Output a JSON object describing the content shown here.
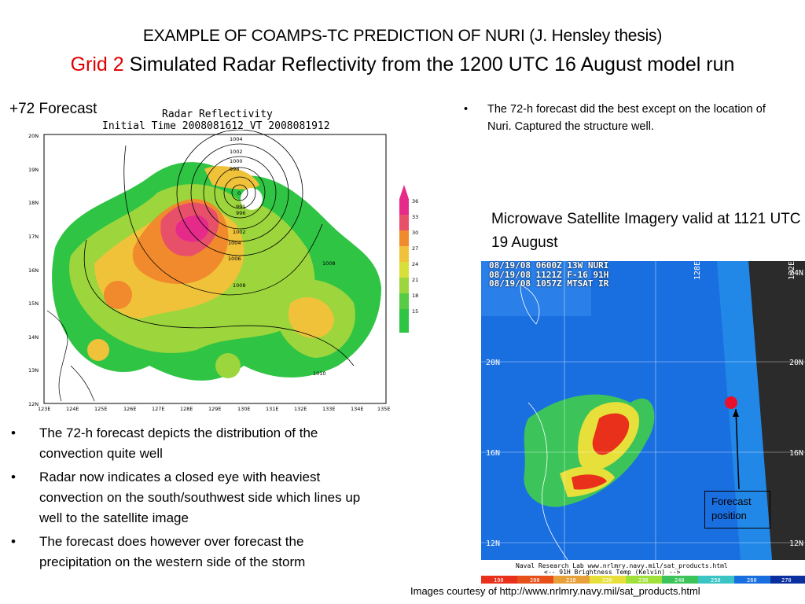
{
  "title": {
    "line1": "EXAMPLE OF COAMPS-TC PREDICTION OF NURI (J. Hensley thesis)",
    "line2_accent": "Grid 2",
    "line2_rest": " Simulated Radar Reflectivity from the 1200 UTC 16 August model run"
  },
  "left": {
    "forecast_label": "+72 Forecast",
    "radar_title": "Radar Reflectivity",
    "radar_subtitle": "Initial Time 2008081612 VT 2008081912",
    "lat_labels": [
      "20N",
      "19N",
      "18N",
      "17N",
      "16N",
      "15N",
      "14N",
      "13N",
      "12N"
    ],
    "lon_labels": [
      "123E",
      "124E",
      "125E",
      "126E",
      "127E",
      "128E",
      "129E",
      "130E",
      "131E",
      "132E",
      "133E",
      "134E",
      "135E"
    ],
    "colorbar_labels": [
      "36",
      "33",
      "30",
      "27",
      "24",
      "21",
      "18",
      "15"
    ],
    "contour_labels": [
      "1004",
      "1002",
      "1000",
      "998",
      "0",
      "991",
      "996",
      "1002",
      "1004",
      "1006",
      "1008",
      "1008",
      "1010"
    ],
    "bullets": [
      "The 72-h forecast depicts the distribution of the convection quite well",
      "Radar now indicates a closed eye with heaviest convection on the south/southwest side which lines up well to the satellite image",
      "The forecast does however over forecast the precipitation on the western side of the storm"
    ]
  },
  "right": {
    "bullet": "The 72-h forecast did the best except on the location of Nuri.  Captured the structure well.",
    "microwave_title": "Microwave Satellite Imagery valid at 1121 UTC 19 August",
    "sat_header_lines": [
      "08/19/08 0600Z 13W NURI",
      "08/19/08 1121Z F-16 91H",
      "08/19/08 1057Z MTSAT IR"
    ],
    "sat_lat_labels": [
      "20N",
      "16N",
      "12N",
      "24N",
      "20N",
      "16N",
      "12N"
    ],
    "sat_lon_labels": [
      "128E",
      "132E"
    ],
    "sat_footer": "Naval Research Lab  www.nrlmry.navy.mil/sat_products.html",
    "sat_footer2": "<--   91H Brightness Temp (Kelvin)   -->",
    "sat_scale": [
      "190",
      "200",
      "210",
      "220",
      "230",
      "240",
      "250",
      "260",
      "270"
    ],
    "forecast_position_label": "Forecast position",
    "courtesy": "Images courtesy of http://www.nrlmry.navy.mil/sat_products.html"
  },
  "colors": {
    "accent": "#e00000",
    "sat_marker": "#e8102a"
  }
}
